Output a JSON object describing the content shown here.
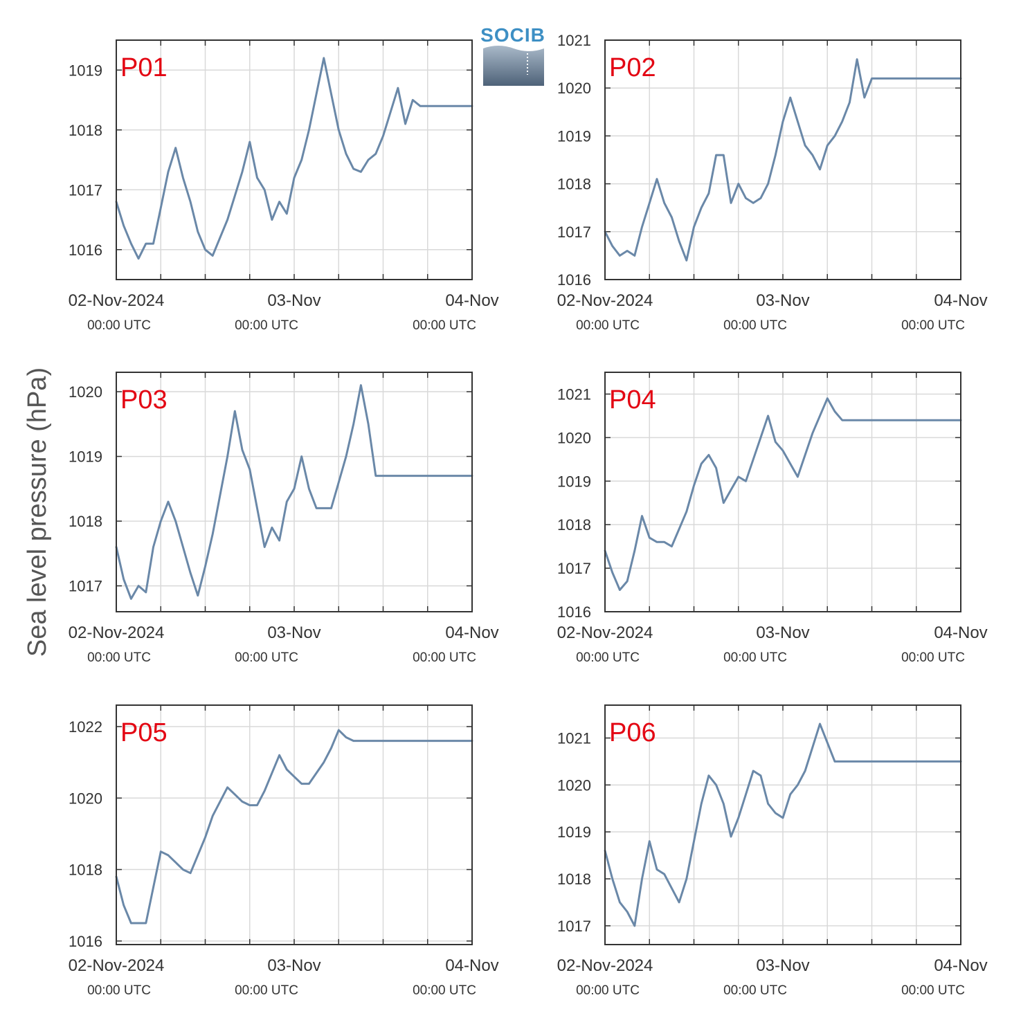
{
  "ylabel": "Sea level pressure (hPa)",
  "logo": {
    "text": "SOCIB"
  },
  "x_ticks": [
    {
      "date": "02-Nov-2024",
      "time": "00:00 UTC"
    },
    {
      "date": "03-Nov",
      "time": "00:00 UTC"
    },
    {
      "date": "04-Nov",
      "time": "00:00 UTC"
    }
  ],
  "colors": {
    "series": "#6a88a8",
    "label": "#e30613",
    "logo": "#3d8fc4"
  },
  "chart_data": [
    {
      "type": "line",
      "label": "P01",
      "ylim": [
        1015.5,
        1019.5
      ],
      "yticks": [
        1016,
        1017,
        1018,
        1019
      ],
      "x_unit": "hours since 02-Nov-2024 00:00 UTC",
      "x": [
        0,
        1,
        2,
        3,
        4,
        5,
        6,
        7,
        8,
        9,
        10,
        11,
        12,
        13,
        14,
        15,
        16,
        17,
        18,
        19,
        20,
        21,
        22,
        23,
        24,
        25,
        26,
        27,
        28,
        29,
        30,
        31,
        32,
        33,
        34,
        35,
        36,
        37,
        38,
        39,
        40,
        41,
        42,
        43,
        44,
        45,
        46,
        47,
        48
      ],
      "values": [
        1016.8,
        1016.4,
        1016.1,
        1015.85,
        1016.1,
        1016.1,
        1016.7,
        1017.3,
        1017.7,
        1017.2,
        1016.8,
        1016.3,
        1016.0,
        1015.9,
        1016.2,
        1016.5,
        1016.9,
        1017.3,
        1017.8,
        1017.2,
        1017.0,
        1016.5,
        1016.8,
        1016.6,
        1017.2,
        1017.5,
        1018.0,
        1018.6,
        1019.2,
        1018.6,
        1018.0,
        1017.6,
        1017.35,
        1017.3,
        1017.5,
        1017.6,
        1017.9,
        1018.3,
        1018.7,
        1018.1,
        1018.5,
        1018.4,
        1018.4,
        1018.4,
        1018.4,
        1018.4,
        1018.4,
        1018.4,
        1018.4
      ]
    },
    {
      "type": "line",
      "label": "P02",
      "ylim": [
        1016,
        1021
      ],
      "yticks": [
        1016,
        1017,
        1018,
        1019,
        1020,
        1021
      ],
      "x_unit": "hours since 02-Nov-2024 00:00 UTC",
      "x": [
        0,
        1,
        2,
        3,
        4,
        5,
        6,
        7,
        8,
        9,
        10,
        11,
        12,
        13,
        14,
        15,
        16,
        17,
        18,
        19,
        20,
        21,
        22,
        23,
        24,
        25,
        26,
        27,
        28,
        29,
        30,
        31,
        32,
        33,
        34,
        35,
        36,
        37,
        38,
        39,
        40,
        41,
        42,
        43,
        44,
        45,
        46,
        47,
        48
      ],
      "values": [
        1017.0,
        1016.7,
        1016.5,
        1016.6,
        1016.5,
        1017.1,
        1017.6,
        1018.1,
        1017.6,
        1017.3,
        1016.8,
        1016.4,
        1017.1,
        1017.5,
        1017.8,
        1018.6,
        1018.6,
        1017.6,
        1018.0,
        1017.7,
        1017.6,
        1017.7,
        1018.0,
        1018.6,
        1019.3,
        1019.8,
        1019.3,
        1018.8,
        1018.6,
        1018.3,
        1018.8,
        1019.0,
        1019.3,
        1019.7,
        1020.6,
        1019.8,
        1020.2,
        1020.2,
        1020.2,
        1020.2,
        1020.2,
        1020.2,
        1020.2,
        1020.2,
        1020.2,
        1020.2,
        1020.2,
        1020.2,
        1020.2
      ]
    },
    {
      "type": "line",
      "label": "P03",
      "ylim": [
        1016.6,
        1020.3
      ],
      "yticks": [
        1017,
        1018,
        1019,
        1020
      ],
      "x_unit": "hours since 02-Nov-2024 00:00 UTC",
      "x": [
        0,
        1,
        2,
        3,
        4,
        5,
        6,
        7,
        8,
        9,
        10,
        11,
        12,
        13,
        14,
        15,
        16,
        17,
        18,
        19,
        20,
        21,
        22,
        23,
        24,
        25,
        26,
        27,
        28,
        29,
        30,
        31,
        32,
        33,
        34,
        35,
        36,
        37,
        38,
        39,
        40,
        41,
        42,
        43,
        44,
        45,
        46,
        47,
        48
      ],
      "values": [
        1017.6,
        1017.1,
        1016.8,
        1017.0,
        1016.9,
        1017.6,
        1018.0,
        1018.3,
        1018.0,
        1017.6,
        1017.2,
        1016.85,
        1017.3,
        1017.8,
        1018.4,
        1019.0,
        1019.7,
        1019.1,
        1018.8,
        1018.2,
        1017.6,
        1017.9,
        1017.7,
        1018.3,
        1018.5,
        1019.0,
        1018.5,
        1018.2,
        1018.2,
        1018.2,
        1018.6,
        1019.0,
        1019.5,
        1020.1,
        1019.5,
        1018.7,
        1018.7,
        1018.7,
        1018.7,
        1018.7,
        1018.7,
        1018.7,
        1018.7,
        1018.7,
        1018.7,
        1018.7,
        1018.7,
        1018.7,
        1018.7
      ]
    },
    {
      "type": "line",
      "label": "P04",
      "ylim": [
        1016,
        1021.5
      ],
      "yticks": [
        1016,
        1017,
        1018,
        1019,
        1020,
        1021
      ],
      "x_unit": "hours since 02-Nov-2024 00:00 UTC",
      "x": [
        0,
        1,
        2,
        3,
        4,
        5,
        6,
        7,
        8,
        9,
        10,
        11,
        12,
        13,
        14,
        15,
        16,
        17,
        18,
        19,
        20,
        21,
        22,
        23,
        24,
        25,
        26,
        27,
        28,
        29,
        30,
        31,
        32,
        33,
        34,
        35,
        36,
        37,
        38,
        39,
        40,
        41,
        42,
        43,
        44,
        45,
        46,
        47,
        48
      ],
      "values": [
        1017.4,
        1016.9,
        1016.5,
        1016.7,
        1017.4,
        1018.2,
        1017.7,
        1017.6,
        1017.6,
        1017.5,
        1017.9,
        1018.3,
        1018.9,
        1019.4,
        1019.6,
        1019.3,
        1018.5,
        1018.8,
        1019.1,
        1019.0,
        1019.5,
        1020.0,
        1020.5,
        1019.9,
        1019.7,
        1019.4,
        1019.1,
        1019.6,
        1020.1,
        1020.5,
        1020.9,
        1020.6,
        1020.4,
        1020.4,
        1020.4,
        1020.4,
        1020.4,
        1020.4,
        1020.4,
        1020.4,
        1020.4,
        1020.4,
        1020.4,
        1020.4,
        1020.4,
        1020.4,
        1020.4,
        1020.4,
        1020.4
      ]
    },
    {
      "type": "line",
      "label": "P05",
      "ylim": [
        1015.9,
        1022.6
      ],
      "yticks": [
        1016,
        1018,
        1020,
        1022
      ],
      "x_unit": "hours since 02-Nov-2024 00:00 UTC",
      "x": [
        0,
        1,
        2,
        3,
        4,
        5,
        6,
        7,
        8,
        9,
        10,
        11,
        12,
        13,
        14,
        15,
        16,
        17,
        18,
        19,
        20,
        21,
        22,
        23,
        24,
        25,
        26,
        27,
        28,
        29,
        30,
        31,
        32,
        33,
        34,
        35,
        36,
        37,
        38,
        39,
        40,
        41,
        42,
        43,
        44,
        45,
        46,
        47,
        48
      ],
      "values": [
        1017.8,
        1017.0,
        1016.5,
        1016.5,
        1016.5,
        1017.5,
        1018.5,
        1018.4,
        1018.2,
        1018.0,
        1017.9,
        1018.4,
        1018.9,
        1019.5,
        1019.9,
        1020.3,
        1020.1,
        1019.9,
        1019.8,
        1019.8,
        1020.2,
        1020.7,
        1021.2,
        1020.8,
        1020.6,
        1020.4,
        1020.4,
        1020.7,
        1021.0,
        1021.4,
        1021.9,
        1021.7,
        1021.6,
        1021.6,
        1021.6,
        1021.6,
        1021.6,
        1021.6,
        1021.6,
        1021.6,
        1021.6,
        1021.6,
        1021.6,
        1021.6,
        1021.6,
        1021.6,
        1021.6,
        1021.6,
        1021.6
      ]
    },
    {
      "type": "line",
      "label": "P06",
      "ylim": [
        1016.6,
        1021.7
      ],
      "yticks": [
        1017,
        1018,
        1019,
        1020,
        1021
      ],
      "x_unit": "hours since 02-Nov-2024 00:00 UTC",
      "x": [
        0,
        1,
        2,
        3,
        4,
        5,
        6,
        7,
        8,
        9,
        10,
        11,
        12,
        13,
        14,
        15,
        16,
        17,
        18,
        19,
        20,
        21,
        22,
        23,
        24,
        25,
        26,
        27,
        28,
        29,
        30,
        31,
        32,
        33,
        34,
        35,
        36,
        37,
        38,
        39,
        40,
        41,
        42,
        43,
        44,
        45,
        46,
        47,
        48
      ],
      "values": [
        1018.6,
        1018.0,
        1017.5,
        1017.3,
        1017.0,
        1018.0,
        1018.8,
        1018.2,
        1018.1,
        1017.8,
        1017.5,
        1018.0,
        1018.8,
        1019.6,
        1020.2,
        1020.0,
        1019.6,
        1018.9,
        1019.3,
        1019.8,
        1020.3,
        1020.2,
        1019.6,
        1019.4,
        1019.3,
        1019.8,
        1020.0,
        1020.3,
        1020.8,
        1021.3,
        1020.9,
        1020.5,
        1020.5,
        1020.5,
        1020.5,
        1020.5,
        1020.5,
        1020.5,
        1020.5,
        1020.5,
        1020.5,
        1020.5,
        1020.5,
        1020.5,
        1020.5,
        1020.5,
        1020.5,
        1020.5,
        1020.5
      ]
    }
  ]
}
